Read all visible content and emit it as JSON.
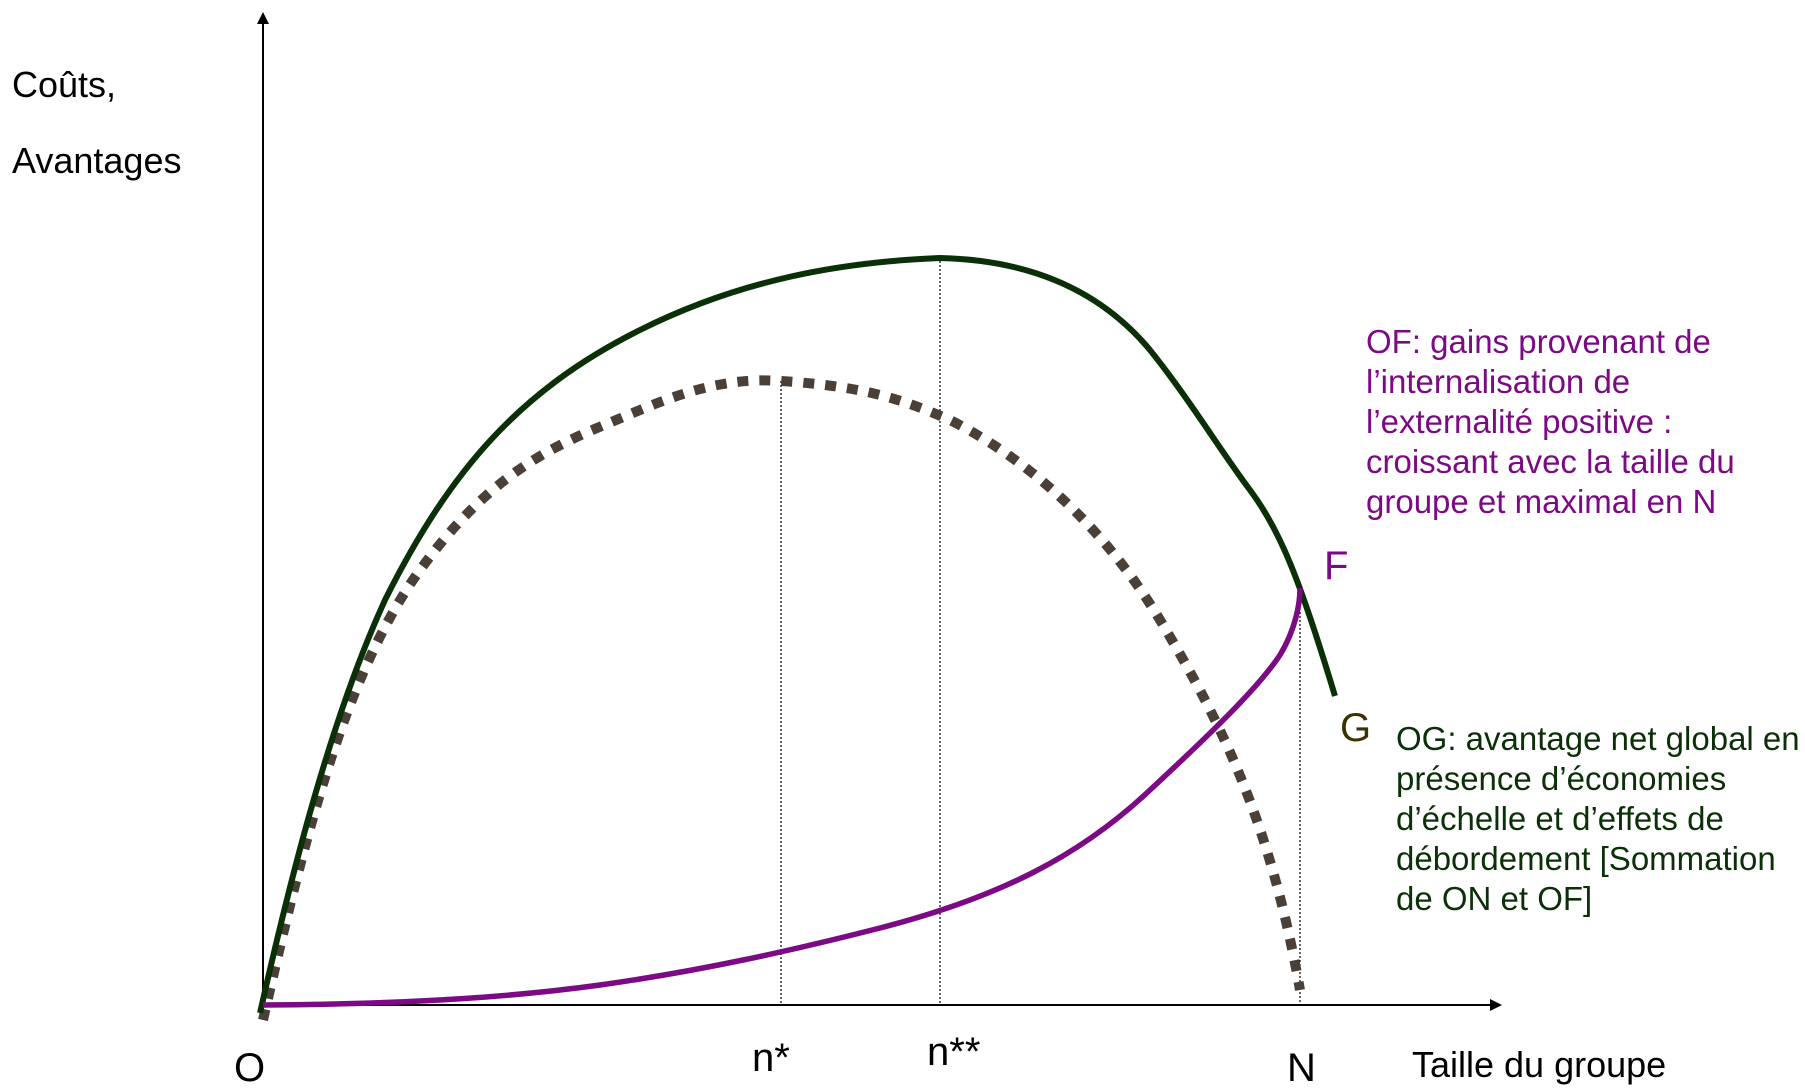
{
  "y_axis_label_line1": "Coûts,",
  "y_axis_label_line2": "Avantages",
  "x_axis_label": "Taille du groupe",
  "origin_label": "O",
  "tick_labels": {
    "n_star": "n*",
    "n_star_star": "n**",
    "N": "N"
  },
  "point_labels": {
    "F": "F",
    "G": "G"
  },
  "note_OF": "OF: gains provenant de l’internalisation de l’externalité positive  : croissant avec la taille du groupe et maximal en N",
  "note_OG": "OG: avantage net global en présence d’économies d’échelle et d’effets de débordement [Sommation de ON et OF]",
  "colors": {
    "axis": "#000000",
    "curve_OG": "#0b3008",
    "curve_ON_dotted": "#4a4038",
    "curve_OF": "#7b0a84",
    "label_F": "#7b0a84",
    "label_G": "#3a3200",
    "note_OF": "#7b0a84",
    "note_OG": "#0b3008"
  }
}
